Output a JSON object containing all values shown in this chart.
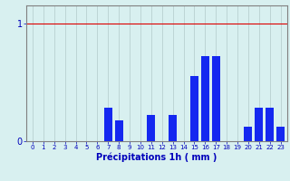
{
  "hours": [
    0,
    1,
    2,
    3,
    4,
    5,
    6,
    7,
    8,
    9,
    10,
    11,
    12,
    13,
    14,
    15,
    16,
    17,
    18,
    19,
    20,
    21,
    22,
    23
  ],
  "values": [
    0,
    0,
    0,
    0,
    0,
    0,
    0,
    0.28,
    0.18,
    0,
    0,
    0.22,
    0,
    0.22,
    0,
    0.55,
    0.72,
    0.72,
    0,
    0,
    0.12,
    0.28,
    0.28,
    0.12
  ],
  "bar_color": "#1428f0",
  "background_color": "#d8f0f0",
  "grid_color": "#b8d0d0",
  "xlabel": "Précipitations 1h ( mm )",
  "ylim": [
    0,
    1.0
  ],
  "yticks": [
    0,
    1
  ],
  "xlabel_color": "#0000bb",
  "tick_color": "#0000bb",
  "spine_color": "#808080",
  "red_line_color": "#dd0000",
  "red_line_y": 1.0,
  "bar_width": 0.75
}
